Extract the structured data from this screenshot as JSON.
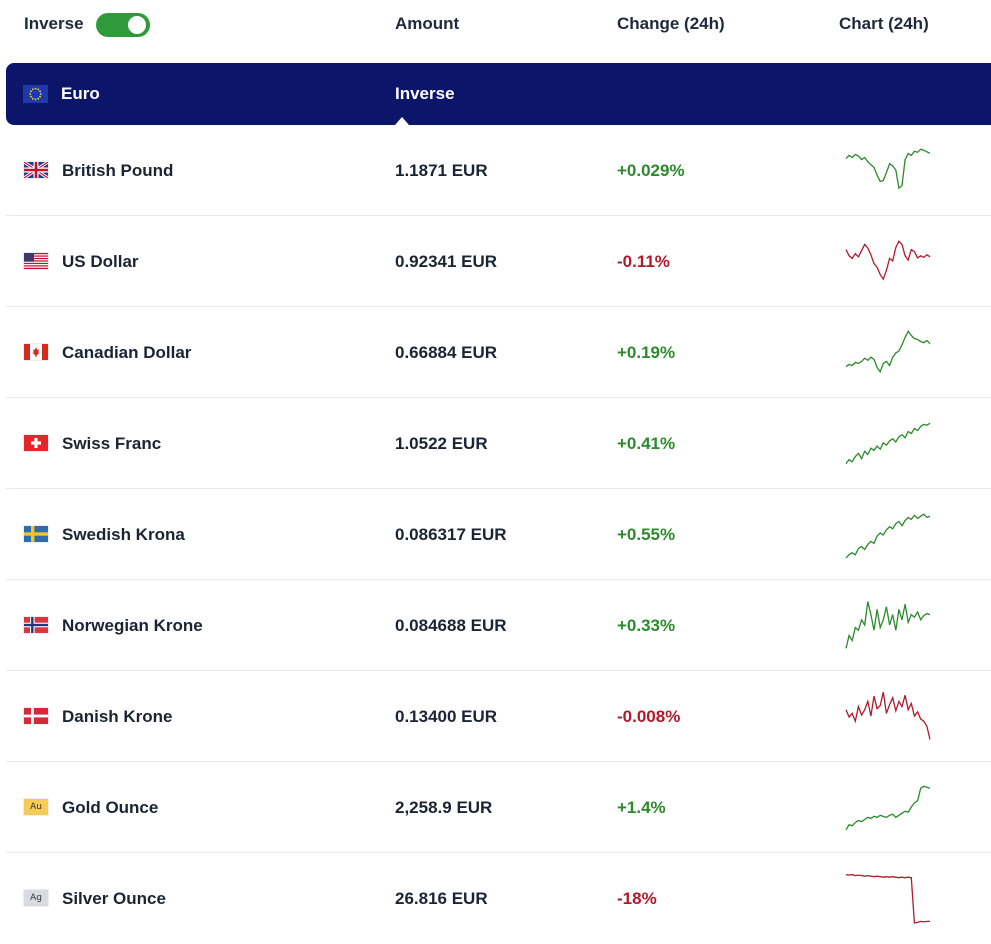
{
  "header": {
    "inverse_label": "Inverse",
    "inverse_on": true,
    "col_amount": "Amount",
    "col_change": "Change (24h)",
    "col_chart": "Chart (24h)"
  },
  "base": {
    "name": "Euro",
    "inverse_label": "Inverse",
    "flag": "eu-flag-icon"
  },
  "colors": {
    "accent": "#0b166b",
    "toggle": "#2e9a3a",
    "positive": "#2b8a2b",
    "negative": "#b01a2b"
  },
  "rows": [
    {
      "name": "British Pound",
      "amount": "1.1871 EUR",
      "change": "+0.029%",
      "direction": "up",
      "flag": "gb-flag-icon"
    },
    {
      "name": "US Dollar",
      "amount": "0.92341 EUR",
      "change": "-0.11%",
      "direction": "down",
      "flag": "us-flag-icon"
    },
    {
      "name": "Canadian Dollar",
      "amount": "0.66884 EUR",
      "change": "+0.19%",
      "direction": "up",
      "flag": "ca-flag-icon"
    },
    {
      "name": "Swiss Franc",
      "amount": "1.0522 EUR",
      "change": "+0.41%",
      "direction": "up",
      "flag": "ch-flag-icon"
    },
    {
      "name": "Swedish Krona",
      "amount": "0.086317 EUR",
      "change": "+0.55%",
      "direction": "up",
      "flag": "se-flag-icon"
    },
    {
      "name": "Norwegian Krone",
      "amount": "0.084688 EUR",
      "change": "+0.33%",
      "direction": "up",
      "flag": "no-flag-icon"
    },
    {
      "name": "Danish Krone",
      "amount": "0.13400 EUR",
      "change": "-0.008%",
      "direction": "down",
      "flag": "dk-flag-icon"
    },
    {
      "name": "Gold Ounce",
      "amount": "2,258.9 EUR",
      "change": "+1.4%",
      "direction": "up",
      "flag": "gold-icon",
      "symbol": "Au"
    },
    {
      "name": "Silver Ounce",
      "amount": "26.816 EUR",
      "change": "-18%",
      "direction": "down",
      "flag": "silver-icon",
      "symbol": "Ag"
    }
  ],
  "sparklines": [
    [
      0.72,
      0.78,
      0.74,
      0.8,
      0.77,
      0.7,
      0.74,
      0.66,
      0.6,
      0.55,
      0.4,
      0.28,
      0.3,
      0.45,
      0.62,
      0.58,
      0.5,
      0.15,
      0.2,
      0.7,
      0.82,
      0.78,
      0.86,
      0.84,
      0.9,
      0.88,
      0.85,
      0.82
    ],
    [
      0.72,
      0.6,
      0.55,
      0.64,
      0.58,
      0.7,
      0.82,
      0.75,
      0.62,
      0.45,
      0.38,
      0.24,
      0.15,
      0.32,
      0.55,
      0.5,
      0.76,
      0.88,
      0.82,
      0.6,
      0.52,
      0.72,
      0.68,
      0.56,
      0.6,
      0.57,
      0.62,
      0.58
    ],
    [
      0.22,
      0.26,
      0.24,
      0.3,
      0.28,
      0.32,
      0.38,
      0.34,
      0.4,
      0.36,
      0.2,
      0.12,
      0.28,
      0.32,
      0.24,
      0.4,
      0.48,
      0.52,
      0.64,
      0.78,
      0.9,
      0.82,
      0.76,
      0.74,
      0.7,
      0.68,
      0.72,
      0.66
    ],
    [
      0.1,
      0.18,
      0.14,
      0.24,
      0.3,
      0.2,
      0.34,
      0.28,
      0.4,
      0.36,
      0.44,
      0.38,
      0.5,
      0.46,
      0.54,
      0.58,
      0.52,
      0.62,
      0.66,
      0.6,
      0.72,
      0.68,
      0.78,
      0.74,
      0.82,
      0.86,
      0.84,
      0.88
    ],
    [
      0.04,
      0.1,
      0.14,
      0.1,
      0.22,
      0.26,
      0.2,
      0.3,
      0.36,
      0.32,
      0.46,
      0.52,
      0.48,
      0.58,
      0.64,
      0.6,
      0.7,
      0.74,
      0.66,
      0.76,
      0.82,
      0.78,
      0.86,
      0.8,
      0.84,
      0.88,
      0.82,
      0.84
    ],
    [
      0.05,
      0.3,
      0.2,
      0.45,
      0.4,
      0.6,
      0.5,
      0.95,
      0.7,
      0.4,
      0.8,
      0.45,
      0.6,
      0.85,
      0.5,
      0.7,
      0.4,
      0.8,
      0.6,
      0.9,
      0.55,
      0.7,
      0.65,
      0.75,
      0.6,
      0.68,
      0.72,
      0.7
    ],
    [
      0.62,
      0.48,
      0.55,
      0.4,
      0.68,
      0.52,
      0.62,
      0.78,
      0.5,
      0.88,
      0.64,
      0.7,
      0.96,
      0.55,
      0.72,
      0.85,
      0.6,
      0.78,
      0.68,
      0.9,
      0.62,
      0.74,
      0.5,
      0.58,
      0.44,
      0.4,
      0.3,
      0.05
    ],
    [
      0.06,
      0.16,
      0.14,
      0.2,
      0.24,
      0.22,
      0.26,
      0.3,
      0.28,
      0.32,
      0.3,
      0.34,
      0.32,
      0.3,
      0.34,
      0.36,
      0.3,
      0.34,
      0.38,
      0.42,
      0.4,
      0.5,
      0.58,
      0.62,
      0.86,
      0.9,
      0.88,
      0.86
    ],
    [
      0.95,
      0.94,
      0.95,
      0.93,
      0.94,
      0.93,
      0.92,
      0.93,
      0.92,
      0.91,
      0.92,
      0.91,
      0.9,
      0.91,
      0.9,
      0.91,
      0.9,
      0.89,
      0.9,
      0.89,
      0.9,
      0.89,
      0.02,
      0.03,
      0.05,
      0.04,
      0.05,
      0.05
    ]
  ]
}
